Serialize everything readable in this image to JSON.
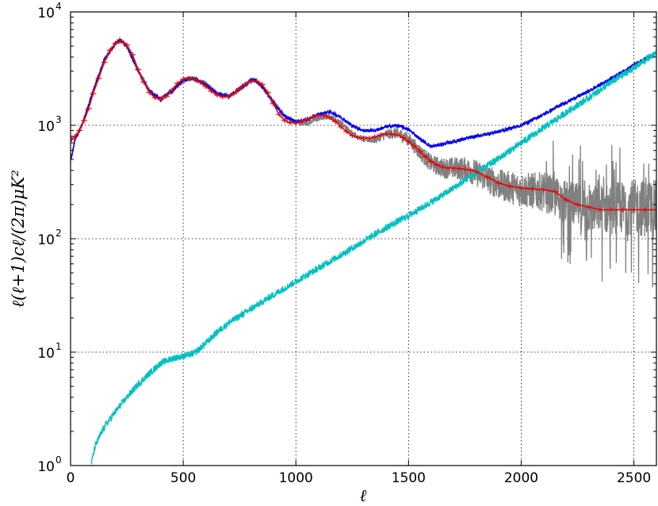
{
  "chart_data": {
    "type": "line",
    "title": "",
    "xlabel": "ℓ",
    "ylabel": "ℓ(ℓ+1)c",
    "ylabel_full": "ℓ(ℓ+1)cℓ/(2π)μK²",
    "x_scale": "linear",
    "y_scale": "log",
    "xlim": [
      0,
      2600
    ],
    "ylim": [
      1,
      10000
    ],
    "grid": true,
    "xticks": [
      {
        "value": 0,
        "label": "0"
      },
      {
        "value": 500,
        "label": "500"
      },
      {
        "value": 1000,
        "label": "1000"
      },
      {
        "value": 1500,
        "label": "1500"
      },
      {
        "value": 2000,
        "label": "2000"
      },
      {
        "value": 2500,
        "label": "2500"
      }
    ],
    "yticks": [
      {
        "value": 1,
        "base": "10",
        "exp": "0"
      },
      {
        "value": 10,
        "base": "10",
        "exp": "1"
      },
      {
        "value": 100,
        "base": "10",
        "exp": "2"
      },
      {
        "value": 1000,
        "base": "10",
        "exp": "3"
      },
      {
        "value": 10000,
        "base": "10",
        "exp": "4"
      }
    ],
    "series": [
      {
        "color": "#808080",
        "style": "noisy",
        "x": [
          2,
          20,
          50,
          100,
          150,
          200,
          220,
          250,
          300,
          350,
          400,
          450,
          500,
          540,
          600,
          650,
          700,
          750,
          800,
          820,
          850,
          900,
          950,
          1000,
          1050,
          1100,
          1150,
          1200,
          1250,
          1300,
          1350,
          1400,
          1450,
          1500,
          1550,
          1600,
          1650,
          1700,
          1750,
          1800,
          1900,
          2000,
          2100,
          2200,
          2300,
          2400,
          2500,
          2600
        ],
        "values": [
          500,
          750,
          1000,
          2000,
          3800,
          5300,
          5600,
          5000,
          3000,
          2000,
          1700,
          2000,
          2500,
          2600,
          2300,
          1900,
          1800,
          2100,
          2500,
          2500,
          2200,
          1600,
          1200,
          1050,
          1050,
          1150,
          1200,
          1050,
          850,
          750,
          750,
          830,
          860,
          750,
          580,
          460,
          420,
          420,
          410,
          380,
          300,
          270,
          260,
          210,
          180,
          185,
          190,
          180
        ]
      },
      {
        "color": "#0000ee",
        "style": "noisy",
        "x": [
          2,
          20,
          50,
          100,
          150,
          200,
          220,
          250,
          300,
          350,
          400,
          450,
          500,
          540,
          600,
          650,
          700,
          750,
          800,
          820,
          850,
          900,
          950,
          1000,
          1050,
          1100,
          1150,
          1200,
          1250,
          1300,
          1350,
          1400,
          1450,
          1500,
          1550,
          1600,
          1650,
          1700,
          1750,
          1800,
          1900,
          2000,
          2100,
          2200,
          2300,
          2400,
          2500,
          2600
        ],
        "values": [
          500,
          750,
          1000,
          2000,
          3800,
          5300,
          5600,
          5000,
          3000,
          2000,
          1700,
          2000,
          2500,
          2600,
          2300,
          1900,
          1800,
          2100,
          2500,
          2500,
          2200,
          1600,
          1200,
          1080,
          1120,
          1250,
          1320,
          1180,
          990,
          900,
          900,
          970,
          1000,
          920,
          760,
          650,
          680,
          720,
          760,
          800,
          880,
          1000,
          1250,
          1600,
          2000,
          2600,
          3400,
          4400
        ]
      },
      {
        "color": "#00c0c0",
        "style": "noisy",
        "x": [
          90,
          110,
          150,
          200,
          250,
          300,
          350,
          400,
          450,
          500,
          550,
          600,
          650,
          700,
          800,
          900,
          1000,
          1100,
          1200,
          1300,
          1400,
          1500,
          1600,
          1700,
          1800,
          1900,
          2000,
          2100,
          2200,
          2300,
          2400,
          2500,
          2600
        ],
        "values": [
          1,
          1.5,
          2.2,
          3,
          4,
          5.2,
          6.5,
          8,
          8.8,
          9.2,
          9.8,
          12,
          15,
          18,
          24,
          32,
          42,
          55,
          72,
          95,
          125,
          160,
          210,
          280,
          380,
          510,
          700,
          950,
          1300,
          1750,
          2400,
          3200,
          4400
        ]
      },
      {
        "color": "#ee0000",
        "style": "binned",
        "x": [
          5,
          20,
          40,
          60,
          80,
          100,
          125,
          150,
          175,
          200,
          225,
          250,
          275,
          300,
          325,
          350,
          375,
          400,
          425,
          450,
          475,
          500,
          525,
          550,
          575,
          600,
          625,
          650,
          675,
          700,
          725,
          750,
          775,
          800,
          825,
          850,
          875,
          900,
          925,
          950,
          975,
          1000,
          1025,
          1050,
          1075,
          1100,
          1125,
          1150,
          1175,
          1200,
          1225,
          1250,
          1275,
          1300,
          1325,
          1350,
          1375,
          1400,
          1425,
          1450,
          1475,
          1500,
          1525,
          1550,
          1575,
          1600,
          1625,
          1650,
          1675,
          1700,
          1725,
          1750,
          1775,
          1800,
          1850,
          1900,
          1950,
          2000,
          2050,
          2100,
          2150,
          2200,
          2250,
          2300,
          2350,
          2400,
          2450,
          2500,
          2550,
          2600
        ],
        "values": [
          750,
          800,
          900,
          1100,
          1400,
          1900,
          2600,
          3600,
          4600,
          5300,
          5500,
          5100,
          4200,
          3100,
          2400,
          1950,
          1750,
          1700,
          1800,
          2050,
          2350,
          2550,
          2600,
          2550,
          2400,
          2200,
          2000,
          1850,
          1780,
          1800,
          1900,
          2100,
          2300,
          2450,
          2450,
          2300,
          1950,
          1550,
          1250,
          1100,
          1050,
          1050,
          1080,
          1130,
          1190,
          1220,
          1220,
          1170,
          1080,
          970,
          880,
          810,
          780,
          770,
          770,
          790,
          820,
          840,
          840,
          820,
          780,
          720,
          660,
          590,
          530,
          480,
          450,
          430,
          420,
          420,
          415,
          410,
          405,
          390,
          350,
          310,
          290,
          280,
          275,
          270,
          260,
          220,
          200,
          190,
          180,
          180,
          180,
          180,
          180,
          180
        ]
      }
    ]
  }
}
